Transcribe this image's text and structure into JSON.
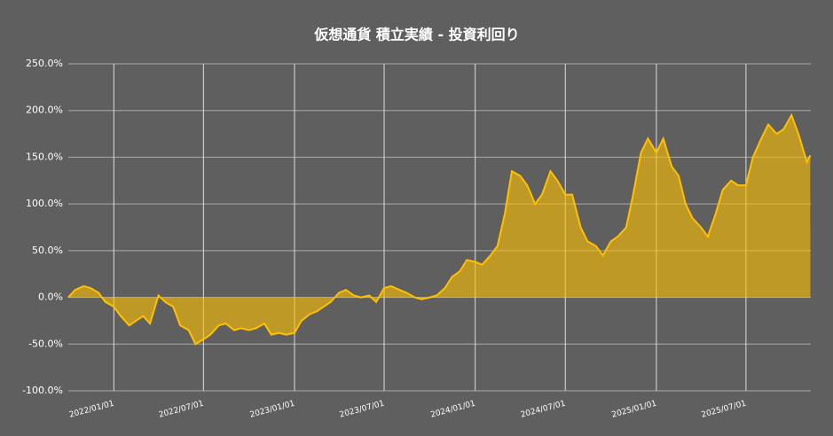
{
  "chart_data": {
    "type": "area",
    "title": "仮想通貨 積立実績 - 投資利回り",
    "x": [
      "2021/10/01",
      "2021/10/15",
      "2021/11/01",
      "2021/11/15",
      "2021/12/01",
      "2021/12/15",
      "2022/01/01",
      "2022/01/15",
      "2022/02/01",
      "2022/02/15",
      "2022/03/01",
      "2022/03/15",
      "2022/04/01",
      "2022/04/15",
      "2022/05/01",
      "2022/05/15",
      "2022/06/01",
      "2022/06/15",
      "2022/07/01",
      "2022/07/15",
      "2022/08/01",
      "2022/08/15",
      "2022/09/01",
      "2022/09/15",
      "2022/10/01",
      "2022/10/15",
      "2022/11/01",
      "2022/11/15",
      "2022/12/01",
      "2022/12/15",
      "2023/01/01",
      "2023/01/15",
      "2023/02/01",
      "2023/02/15",
      "2023/03/01",
      "2023/03/15",
      "2023/04/01",
      "2023/04/15",
      "2023/05/01",
      "2023/05/15",
      "2023/06/01",
      "2023/06/15",
      "2023/07/01",
      "2023/07/15",
      "2023/08/01",
      "2023/08/15",
      "2023/09/01",
      "2023/09/15",
      "2023/10/01",
      "2023/10/15",
      "2023/11/01",
      "2023/11/15",
      "2023/12/01",
      "2023/12/15",
      "2024/01/01",
      "2024/01/15",
      "2024/02/01",
      "2024/02/15",
      "2024/03/01",
      "2024/03/15",
      "2024/04/01",
      "2024/04/15",
      "2024/05/01",
      "2024/05/15",
      "2024/06/01",
      "2024/06/15",
      "2024/07/01",
      "2024/07/15",
      "2024/08/01",
      "2024/08/15",
      "2024/09/01",
      "2024/09/15",
      "2024/10/01",
      "2024/10/15",
      "2024/11/01",
      "2024/11/15",
      "2024/12/01",
      "2024/12/15",
      "2025/01/01",
      "2025/01/15",
      "2025/02/01",
      "2025/02/15",
      "2025/03/01",
      "2025/03/15",
      "2025/04/01",
      "2025/04/15",
      "2025/05/01",
      "2025/05/15",
      "2025/06/01",
      "2025/06/15",
      "2025/07/01",
      "2025/07/15",
      "2025/08/01",
      "2025/08/15",
      "2025/09/01",
      "2025/09/15",
      "2025/10/01",
      "2025/10/15",
      "2025/11/01",
      "2025/11/08"
    ],
    "values": [
      0,
      8,
      12,
      10,
      5,
      -5,
      -10,
      -20,
      -30,
      -25,
      -20,
      -28,
      2,
      -5,
      -10,
      -30,
      -35,
      -50,
      -45,
      -40,
      -30,
      -28,
      -35,
      -33,
      -35,
      -33,
      -28,
      -40,
      -38,
      -40,
      -38,
      -25,
      -18,
      -15,
      -10,
      -5,
      5,
      8,
      2,
      0,
      2,
      -5,
      10,
      12,
      8,
      5,
      0,
      -2,
      0,
      2,
      10,
      22,
      28,
      40,
      38,
      35,
      45,
      55,
      90,
      135,
      130,
      120,
      100,
      110,
      135,
      125,
      110,
      110,
      75,
      60,
      55,
      45,
      60,
      65,
      75,
      110,
      155,
      170,
      155,
      170,
      140,
      130,
      100,
      85,
      75,
      65,
      90,
      115,
      125,
      120,
      120,
      150,
      170,
      185,
      175,
      180,
      195,
      175,
      145,
      152
    ],
    "color": "#ffc000",
    "xlim": [
      "2021/10/01",
      "2025/11/09"
    ],
    "xticks": [
      "2022/01/01",
      "2022/07/01",
      "2023/01/01",
      "2023/07/01",
      "2024/01/01",
      "2024/07/01",
      "2025/01/01",
      "2025/07/01"
    ],
    "ylim": [
      -100,
      250
    ],
    "yticks": [
      {
        "value": -100,
        "label": "-100.0%"
      },
      {
        "value": -50,
        "label": "-50.0%"
      },
      {
        "value": 0,
        "label": "0.0%"
      },
      {
        "value": 50,
        "label": "50.0%"
      },
      {
        "value": 100,
        "label": "100.0%"
      },
      {
        "value": 150,
        "label": "150.0%"
      },
      {
        "value": 200,
        "label": "200.0%"
      },
      {
        "value": 250,
        "label": "250.0%"
      }
    ],
    "grid": true
  }
}
